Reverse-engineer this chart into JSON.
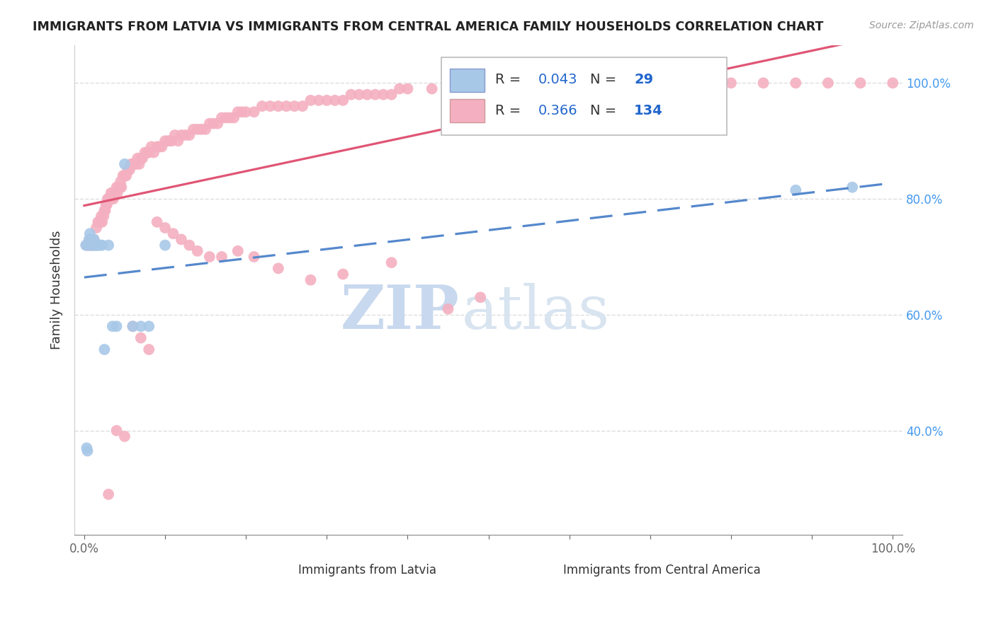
{
  "title": "IMMIGRANTS FROM LATVIA VS IMMIGRANTS FROM CENTRAL AMERICA FAMILY HOUSEHOLDS CORRELATION CHART",
  "source": "Source: ZipAtlas.com",
  "ylabel": "Family Households",
  "blue_color": "#a8c8e8",
  "pink_color": "#f4b0c0",
  "blue_line_color": "#5588cc",
  "pink_line_color": "#e05575",
  "watermark_zip": "ZIP",
  "watermark_atlas": "atlas",
  "legend_blue_R": "0.043",
  "legend_blue_N": "29",
  "legend_pink_R": "0.366",
  "legend_pink_N": "134",
  "label_color": "#2266cc",
  "title_color": "#222222",
  "grid_color": "#dddddd",
  "right_tick_color": "#4499ee",
  "source_color": "#999999",
  "bottom_label_color": "#333333",
  "blue_x": [
    0.002,
    0.003,
    0.004,
    0.005,
    0.006,
    0.007,
    0.008,
    0.009,
    0.01,
    0.011,
    0.012,
    0.013,
    0.014,
    0.015,
    0.016,
    0.018,
    0.02,
    0.022,
    0.025,
    0.03,
    0.035,
    0.04,
    0.05,
    0.06,
    0.07,
    0.08,
    0.1,
    0.88,
    0.95
  ],
  "blue_y": [
    0.72,
    0.37,
    0.365,
    0.72,
    0.73,
    0.74,
    0.72,
    0.73,
    0.72,
    0.72,
    0.73,
    0.72,
    0.72,
    0.72,
    0.72,
    0.72,
    0.72,
    0.72,
    0.54,
    0.72,
    0.58,
    0.58,
    0.86,
    0.58,
    0.58,
    0.58,
    0.72,
    0.815,
    0.82
  ],
  "pink_x": [
    0.003,
    0.005,
    0.007,
    0.008,
    0.01,
    0.012,
    0.015,
    0.017,
    0.019,
    0.02,
    0.021,
    0.022,
    0.024,
    0.025,
    0.026,
    0.027,
    0.028,
    0.029,
    0.03,
    0.031,
    0.032,
    0.033,
    0.034,
    0.035,
    0.036,
    0.038,
    0.04,
    0.041,
    0.042,
    0.043,
    0.044,
    0.045,
    0.046,
    0.048,
    0.05,
    0.052,
    0.054,
    0.056,
    0.058,
    0.06,
    0.062,
    0.064,
    0.066,
    0.068,
    0.07,
    0.072,
    0.075,
    0.078,
    0.08,
    0.083,
    0.086,
    0.09,
    0.093,
    0.096,
    0.1,
    0.104,
    0.108,
    0.112,
    0.116,
    0.12,
    0.125,
    0.13,
    0.135,
    0.14,
    0.145,
    0.15,
    0.155,
    0.16,
    0.165,
    0.17,
    0.175,
    0.18,
    0.185,
    0.19,
    0.195,
    0.2,
    0.21,
    0.22,
    0.23,
    0.24,
    0.25,
    0.26,
    0.27,
    0.28,
    0.29,
    0.3,
    0.31,
    0.32,
    0.33,
    0.34,
    0.35,
    0.36,
    0.37,
    0.38,
    0.39,
    0.4,
    0.43,
    0.46,
    0.5,
    0.53,
    0.56,
    0.6,
    0.64,
    0.68,
    0.72,
    0.76,
    0.8,
    0.84,
    0.88,
    0.92,
    0.96,
    1.0,
    0.45,
    0.49,
    0.38,
    0.32,
    0.28,
    0.24,
    0.21,
    0.19,
    0.17,
    0.155,
    0.14,
    0.13,
    0.12,
    0.11,
    0.1,
    0.09,
    0.08,
    0.07,
    0.06,
    0.05,
    0.04,
    0.03
  ],
  "pink_y": [
    0.72,
    0.72,
    0.73,
    0.72,
    0.72,
    0.73,
    0.75,
    0.76,
    0.76,
    0.76,
    0.77,
    0.76,
    0.77,
    0.78,
    0.78,
    0.79,
    0.79,
    0.8,
    0.8,
    0.8,
    0.8,
    0.81,
    0.8,
    0.81,
    0.8,
    0.81,
    0.82,
    0.81,
    0.82,
    0.82,
    0.82,
    0.83,
    0.82,
    0.84,
    0.84,
    0.84,
    0.85,
    0.85,
    0.86,
    0.86,
    0.86,
    0.86,
    0.87,
    0.86,
    0.87,
    0.87,
    0.88,
    0.88,
    0.88,
    0.89,
    0.88,
    0.89,
    0.89,
    0.89,
    0.9,
    0.9,
    0.9,
    0.91,
    0.9,
    0.91,
    0.91,
    0.91,
    0.92,
    0.92,
    0.92,
    0.92,
    0.93,
    0.93,
    0.93,
    0.94,
    0.94,
    0.94,
    0.94,
    0.95,
    0.95,
    0.95,
    0.95,
    0.96,
    0.96,
    0.96,
    0.96,
    0.96,
    0.96,
    0.97,
    0.97,
    0.97,
    0.97,
    0.97,
    0.98,
    0.98,
    0.98,
    0.98,
    0.98,
    0.98,
    0.99,
    0.99,
    0.99,
    0.99,
    1.0,
    1.0,
    1.0,
    1.0,
    1.0,
    1.0,
    1.0,
    1.0,
    1.0,
    1.0,
    1.0,
    1.0,
    1.0,
    1.0,
    0.61,
    0.63,
    0.69,
    0.67,
    0.66,
    0.68,
    0.7,
    0.71,
    0.7,
    0.7,
    0.71,
    0.72,
    0.73,
    0.74,
    0.75,
    0.76,
    0.54,
    0.56,
    0.58,
    0.39,
    0.4,
    0.29
  ]
}
